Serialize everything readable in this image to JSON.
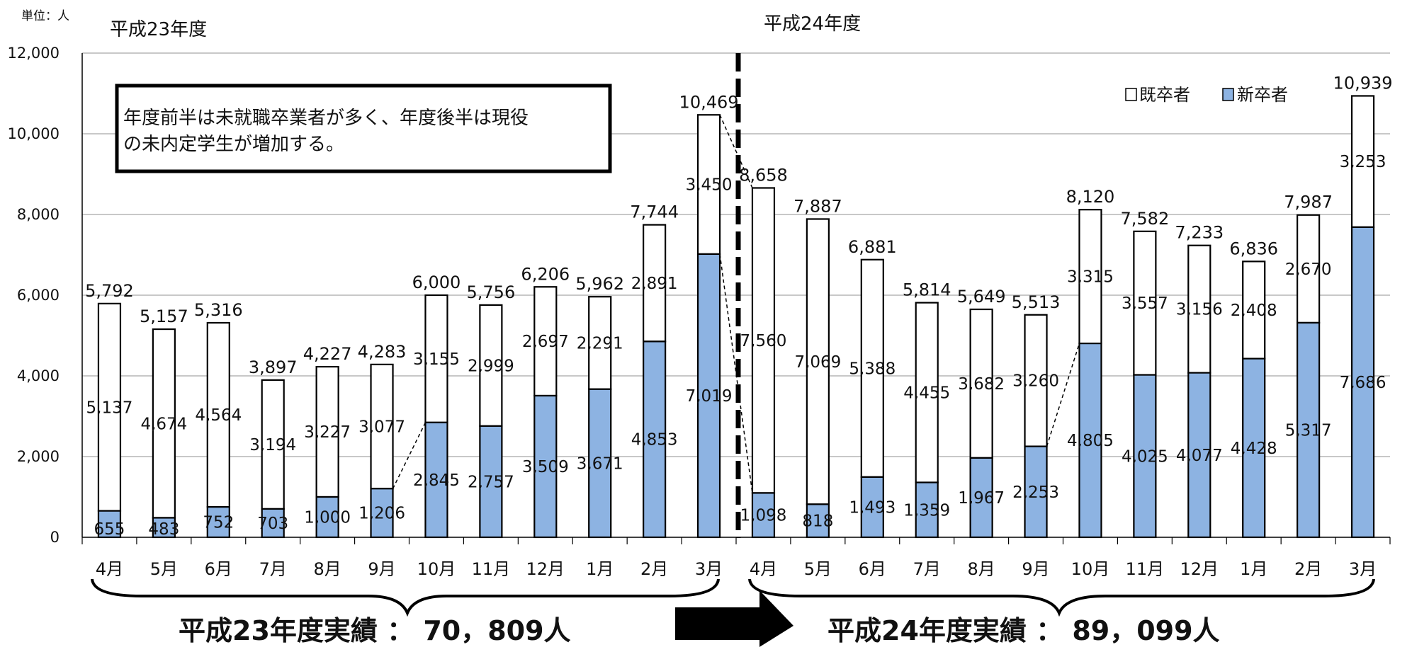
{
  "unit_label": "単位：人",
  "period_labels": [
    "平成23年度",
    "平成24年度"
  ],
  "annotation": "年度前半は未就職卒業者が多く、年度後半は現役の未内定学生が増加する。",
  "annotation_lines": [
    "年度前半は未就職卒業者が多く、年度後半は現役",
    "の未内定学生が増加する。"
  ],
  "totals_summary": [
    "平成23年度実績 ： 70，809人",
    "平成24年度実績 ： 89，099人"
  ],
  "colors": {
    "新卒者": "#8DB3E2",
    "既卒者": "#FFFFFF",
    "bar_stroke": "#000000",
    "grid": "#A6A6A6"
  },
  "chart_data": {
    "type": "bar",
    "stacked": true,
    "categories": [
      "4月",
      "5月",
      "6月",
      "7月",
      "8月",
      "9月",
      "10月",
      "11月",
      "12月",
      "1月",
      "2月",
      "3月",
      "4月",
      "5月",
      "6月",
      "7月",
      "8月",
      "9月",
      "10月",
      "11月",
      "12月",
      "1月",
      "2月",
      "3月"
    ],
    "series": [
      {
        "name": "新卒者",
        "values": [
          655,
          483,
          752,
          703,
          1000,
          1206,
          2845,
          2757,
          3509,
          3671,
          4853,
          7019,
          1098,
          818,
          1493,
          1359,
          1967,
          2253,
          4805,
          4025,
          4077,
          4428,
          5317,
          7686
        ]
      },
      {
        "name": "既卒者",
        "values": [
          5137,
          4674,
          4564,
          3194,
          3227,
          3077,
          3155,
          2999,
          2697,
          2291,
          2891,
          3450,
          7560,
          7069,
          5388,
          4455,
          3682,
          3260,
          3315,
          3557,
          3156,
          2408,
          2670,
          3253
        ]
      }
    ],
    "totals": [
      5792,
      5157,
      5316,
      3897,
      4227,
      4283,
      6000,
      5756,
      6206,
      5962,
      7744,
      10469,
      8658,
      7887,
      6881,
      5814,
      5649,
      5513,
      8120,
      7582,
      7233,
      6836,
      7987,
      10939
    ],
    "yticks": [
      "0",
      "2,000",
      "4,000",
      "6,000",
      "8,000",
      "10,000",
      "12,000"
    ],
    "ylim": [
      0,
      12000
    ],
    "grid": true,
    "legend_position": "top-right",
    "legend": [
      "既卒者",
      "新卒者"
    ]
  }
}
